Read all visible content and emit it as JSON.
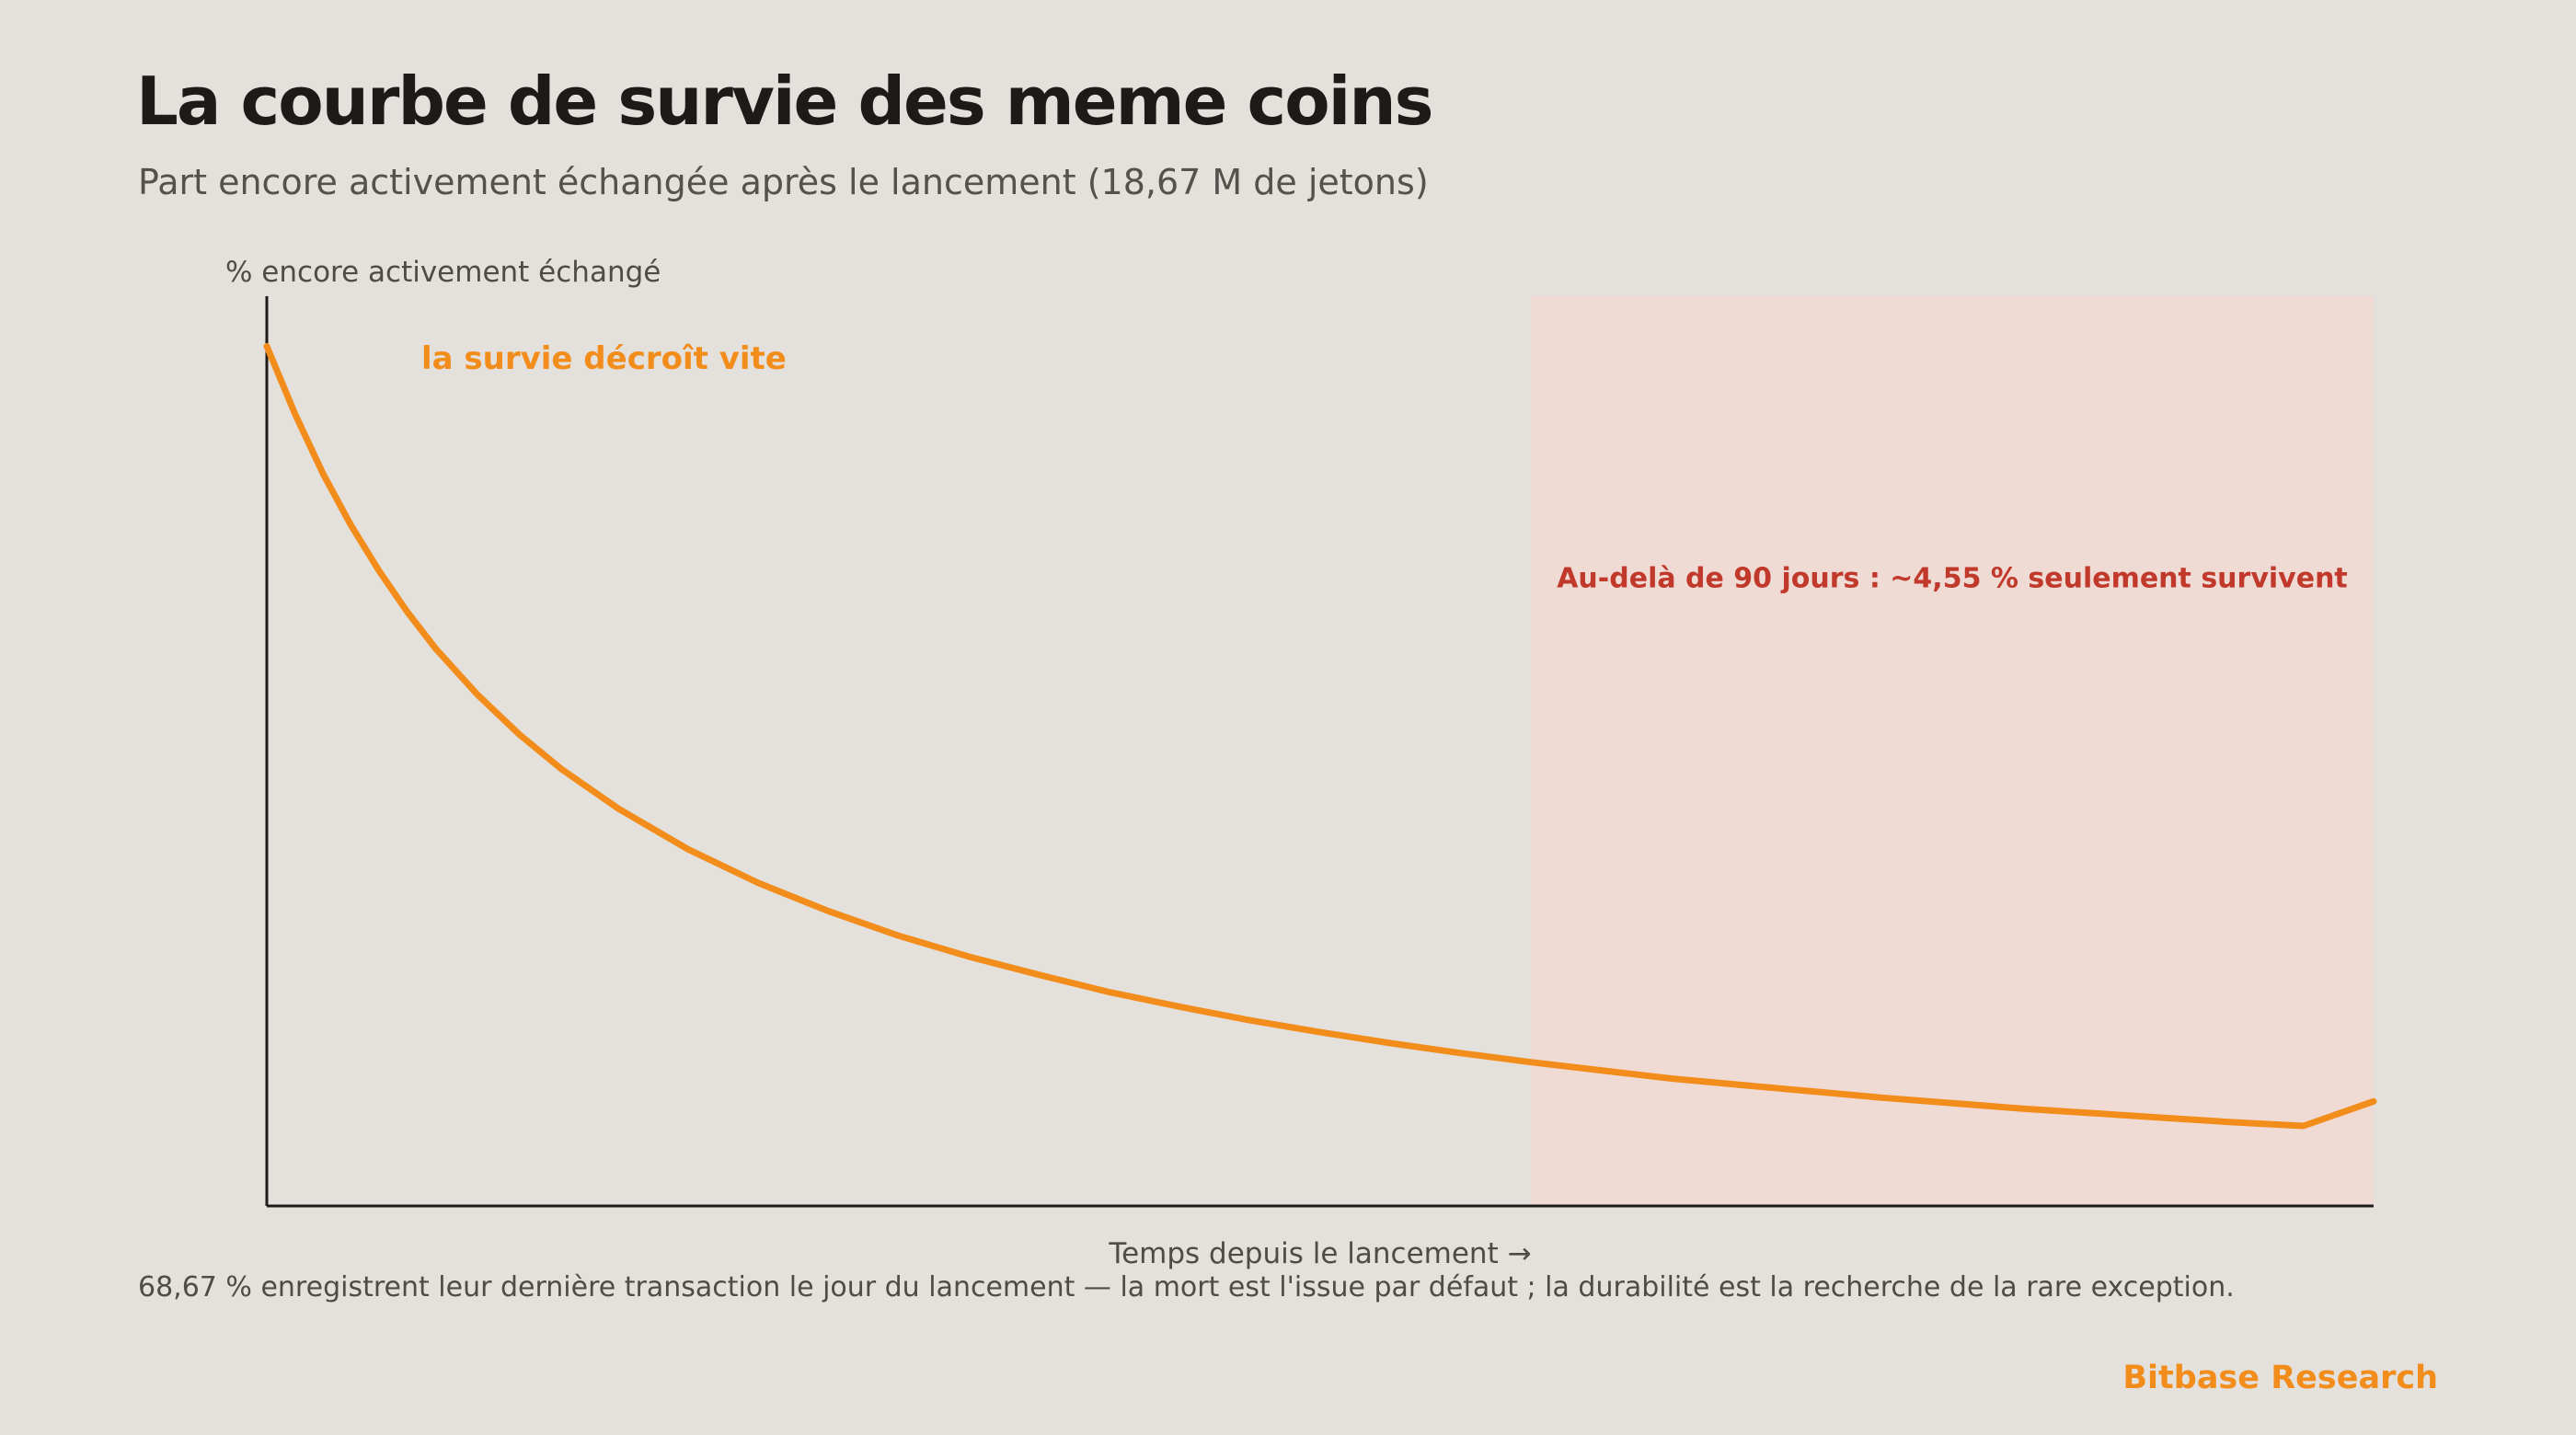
{
  "header": {
    "title": "La courbe de survie des meme coins",
    "subtitle": "Part encore activement échangée après le lancement (18,67 M de jetons)"
  },
  "footer": {
    "note": "68,67 % enregistrent leur dernière transaction le jour du lancement — la mort est l'issue par défaut ; la durabilité est la recherche de la rare exception.",
    "brand": "Bitbase Research"
  },
  "colors": {
    "background": "#e4e0db",
    "curve": "#f28c1b",
    "region": "#f0dad4",
    "region_text": "#c0392b",
    "axis": "#1c1b19"
  },
  "chart_data": {
    "type": "line",
    "ylabel": "% encore activement échangé",
    "xlabel": "Temps depuis le lancement →",
    "ylim": [
      0,
      100
    ],
    "xlim": [
      0,
      150
    ],
    "grid": false,
    "x_ticks_shown": false,
    "y_ticks_shown": false,
    "series": [
      {
        "x": [
          0,
          2,
          4,
          6,
          8,
          10,
          12,
          15,
          18,
          21,
          25,
          30,
          35,
          40,
          45,
          50,
          55,
          60,
          65,
          70,
          75,
          80,
          85,
          90,
          95,
          100,
          105,
          110,
          115,
          120,
          125,
          130,
          135,
          140,
          145,
          150
        ],
        "y": [
          94.5,
          87.1,
          80.5,
          74.8,
          69.8,
          65.3,
          61.3,
          56.2,
          51.8,
          48.0,
          43.7,
          39.2,
          35.5,
          32.4,
          29.7,
          27.4,
          25.4,
          23.5,
          21.9,
          20.4,
          19.1,
          17.9,
          16.8,
          15.8,
          14.9,
          14.0,
          13.3,
          12.6,
          11.9,
          11.3,
          10.7,
          10.2,
          9.7,
          9.2,
          8.8,
          11.5
        ]
      }
    ],
    "highlight_region": {
      "x_start": 90,
      "x_end": 150
    },
    "annotations": [
      {
        "text": "la survie décroît vite",
        "x": 24,
        "y": 92
      },
      {
        "text": "Au-delà de 90 jours : ~4,55 % seulement survivent",
        "x": 120,
        "y": 68
      }
    ]
  }
}
